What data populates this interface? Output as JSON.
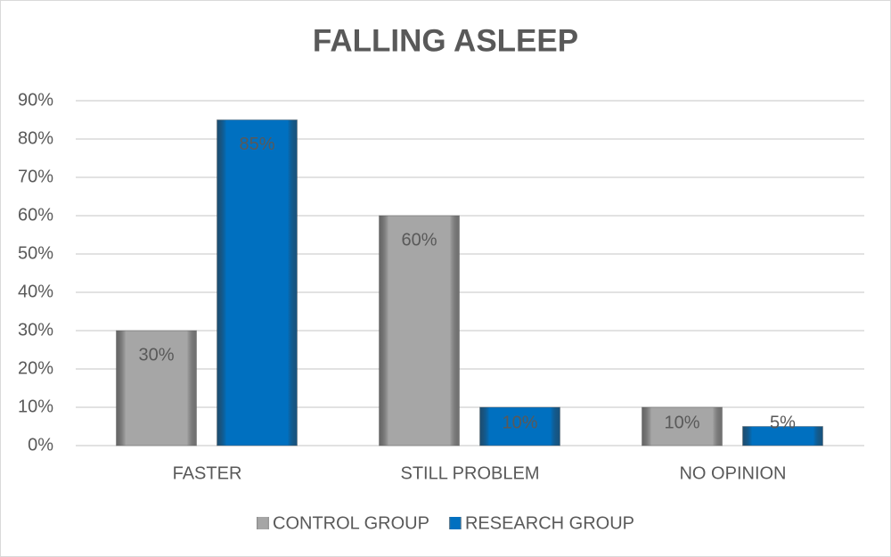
{
  "chart_data": {
    "type": "bar",
    "title": "FALLING ASLEEP",
    "categories": [
      "FASTER",
      "STILL PROBLEM",
      "NO OPINION"
    ],
    "series": [
      {
        "name": "CONTROL GROUP",
        "color": "#a6a6a6",
        "values": [
          30,
          60,
          10
        ],
        "value_labels": [
          "30%",
          "60%",
          "10%"
        ]
      },
      {
        "name": "RESEARCH GROUP",
        "color": "#0070c0",
        "values": [
          85,
          10,
          5
        ],
        "value_labels": [
          "85%",
          "10%",
          "5%"
        ]
      }
    ],
    "ylim": [
      0,
      90
    ],
    "yticks": [
      {
        "value": 0,
        "label": "0%"
      },
      {
        "value": 10,
        "label": "10%"
      },
      {
        "value": 20,
        "label": "20%"
      },
      {
        "value": 30,
        "label": "30%"
      },
      {
        "value": 40,
        "label": "40%"
      },
      {
        "value": 50,
        "label": "50%"
      },
      {
        "value": 60,
        "label": "60%"
      },
      {
        "value": 70,
        "label": "70%"
      },
      {
        "value": 80,
        "label": "80%"
      },
      {
        "value": 90,
        "label": "90%"
      }
    ],
    "grid": true,
    "legend": "bottom"
  }
}
